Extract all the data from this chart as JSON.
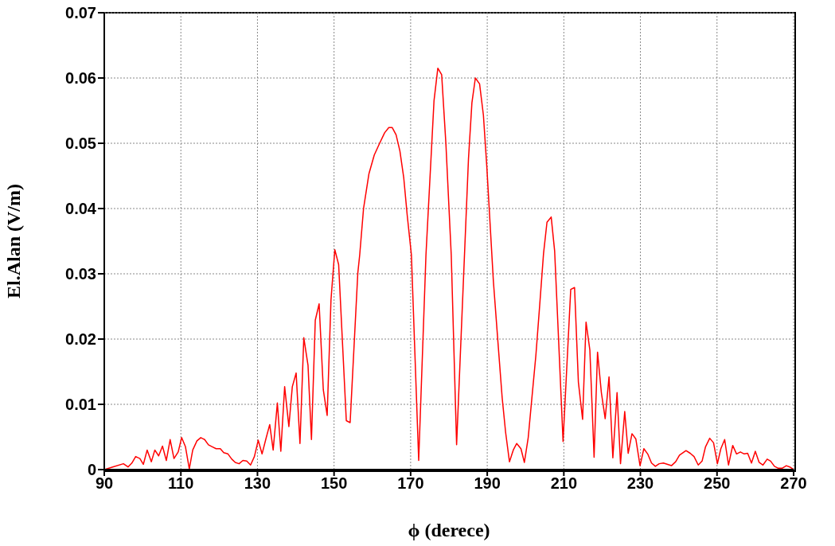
{
  "chart_data": {
    "type": "line",
    "xlabel": "ϕ (derece)",
    "ylabel": "El.Alan (V/m)",
    "xlim": [
      90,
      270
    ],
    "xticks": [
      90,
      110,
      130,
      150,
      170,
      190,
      210,
      230,
      250,
      270
    ],
    "ylim": [
      0,
      0.07
    ],
    "yticks": [
      0,
      0.01,
      0.02,
      0.03,
      0.04,
      0.05,
      0.06,
      0.07
    ],
    "grid": true,
    "marker": "none",
    "line_style": "solid",
    "series": [
      {
        "color": "#ff0000",
        "x": [
          90,
          92.2,
          95,
          96.2,
          97.2,
          98.2,
          99.3,
          100.2,
          101.2,
          102.3,
          103.2,
          104.2,
          105.2,
          106.2,
          107.2,
          108.2,
          109.3,
          110.2,
          111.2,
          112.2,
          113.1,
          114.2,
          115.2,
          116.2,
          117.2,
          118.2,
          119.2,
          120.3,
          121.2,
          122.3,
          123.3,
          124.2,
          125.2,
          126.2,
          127.2,
          128.2,
          129.2,
          130.2,
          131.2,
          132.2,
          133.2,
          134.1,
          135.2,
          136.1,
          137.1,
          138.2,
          139.1,
          140.1,
          141.1,
          142.1,
          143.2,
          144.1,
          145.1,
          146.1,
          147.2,
          148.2,
          149.2,
          150.2,
          151.2,
          153.2,
          154.2,
          156.2,
          156.7,
          157.7,
          159.1,
          160.5,
          161.9,
          163.2,
          164.3,
          165.2,
          166.2,
          167.2,
          168.2,
          169.1,
          170.2,
          172.1,
          174,
          176.1,
          177.1,
          178.1,
          179.2,
          180.6,
          182,
          185.1,
          186,
          186.9,
          188,
          189,
          189.9,
          191.6,
          192.8,
          193.9,
          194.8,
          195.8,
          196.8,
          197.7,
          198.8,
          199.7,
          200.7,
          201.6,
          202.7,
          203.7,
          204.7,
          205.6,
          206.7,
          207.6,
          208.6,
          209.8,
          211.8,
          212.8,
          213.8,
          214.9,
          215.8,
          216.8,
          217.9,
          218.8,
          219.8,
          220.8,
          221.8,
          222.8,
          223.9,
          224.8,
          225.9,
          226.8,
          227.8,
          228.8,
          229.9,
          230.9,
          231.9,
          232.9,
          233.9,
          234.9,
          236,
          238.1,
          239.2,
          240.2,
          241.9,
          243,
          244,
          245.1,
          246.1,
          247,
          248.1,
          249.1,
          250.1,
          251,
          252,
          253,
          254.1,
          255.1,
          256.1,
          257.1,
          258,
          259,
          260,
          261,
          262,
          263.1,
          264,
          265,
          266,
          267,
          268.1,
          269,
          270
        ],
        "values": [
          0,
          0.0004,
          0.0009,
          0.0004,
          0.001,
          0.002,
          0.0017,
          0.0008,
          0.003,
          0.0012,
          0.003,
          0.0021,
          0.0036,
          0.0014,
          0.0046,
          0.0017,
          0.0027,
          0.0049,
          0.0035,
          0.0001,
          0.003,
          0.0044,
          0.0049,
          0.0046,
          0.0038,
          0.0035,
          0.0032,
          0.0032,
          0.0026,
          0.0024,
          0.0016,
          0.0011,
          0.0009,
          0.0014,
          0.0013,
          0.0007,
          0.002,
          0.0045,
          0.0024,
          0.0047,
          0.0069,
          0.003,
          0.0102,
          0.0028,
          0.0127,
          0.0066,
          0.0127,
          0.0148,
          0.004,
          0.0202,
          0.016,
          0.0046,
          0.0229,
          0.0254,
          0.0122,
          0.0083,
          0.026,
          0.0337,
          0.0314,
          0.0075,
          0.0072,
          0.0301,
          0.0329,
          0.04,
          0.0453,
          0.0482,
          0.05,
          0.0516,
          0.0524,
          0.0524,
          0.0513,
          0.0488,
          0.0447,
          0.039,
          0.0329,
          0.0014,
          0.0329,
          0.0565,
          0.0615,
          0.0605,
          0.05,
          0.0329,
          0.0038,
          0.0476,
          0.0562,
          0.06,
          0.0591,
          0.0543,
          0.0463,
          0.0289,
          0.0195,
          0.011,
          0.0057,
          0.0012,
          0.003,
          0.004,
          0.0032,
          0.0011,
          0.0049,
          0.0106,
          0.0175,
          0.0252,
          0.0331,
          0.0379,
          0.0387,
          0.0335,
          0.0203,
          0.0043,
          0.0276,
          0.0279,
          0.0134,
          0.0077,
          0.0226,
          0.0183,
          0.0019,
          0.018,
          0.0118,
          0.0078,
          0.0142,
          0.0018,
          0.0118,
          0.0009,
          0.0089,
          0.0025,
          0.0055,
          0.0047,
          0.0006,
          0.0032,
          0.0024,
          0.001,
          0.0005,
          0.0009,
          0.001,
          0.0006,
          0.0012,
          0.0022,
          0.0029,
          0.0025,
          0.002,
          0.0007,
          0.0013,
          0.0035,
          0.0048,
          0.0041,
          0.0009,
          0.0032,
          0.0046,
          0.0007,
          0.0037,
          0.0024,
          0.0027,
          0.0024,
          0.0025,
          0.001,
          0.0028,
          0.0011,
          0.0007,
          0.0016,
          0.0013,
          0.0005,
          0.0002,
          0.0002,
          0.0006,
          0.0004,
          0
        ]
      }
    ]
  }
}
